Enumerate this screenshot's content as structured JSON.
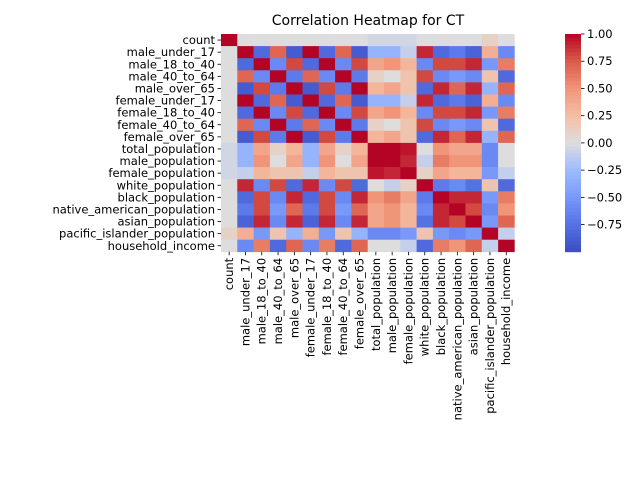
{
  "chart_data": {
    "type": "heatmap",
    "title": "Correlation Heatmap for CT",
    "xlabel": "",
    "ylabel": "",
    "colormap": "coolwarm",
    "vmin": -1.0,
    "vmax": 1.0,
    "colorbar_ticks": [
      "1.00",
      "0.75",
      "0.50",
      "0.25",
      "0.00",
      "−0.25",
      "−0.50",
      "−0.75"
    ],
    "colorbar_tick_values": [
      1.0,
      0.75,
      0.5,
      0.25,
      0.0,
      -0.25,
      -0.5,
      -0.75
    ],
    "categories": [
      "count",
      "male_under_17",
      "male_18_to_40",
      "male_40_to_64",
      "male_over_65",
      "female_under_17",
      "female_18_to_40",
      "female_40_to_64",
      "female_over_65",
      "total_population",
      "male_population",
      "female_population",
      "white_population",
      "black_population",
      "native_american_population",
      "asian_population",
      "pacific_islander_population",
      "household_income"
    ],
    "matrix": [
      [
        1.0,
        0.0,
        0.0,
        0.0,
        0.0,
        0.0,
        0.0,
        0.0,
        0.0,
        -0.05,
        -0.05,
        -0.05,
        0.0,
        0.0,
        0.0,
        0.0,
        0.1,
        0.0
      ],
      [
        0.0,
        1.0,
        -0.8,
        0.7,
        -0.9,
        1.0,
        -0.8,
        0.7,
        -0.9,
        -0.3,
        -0.3,
        -0.1,
        0.9,
        -0.8,
        -0.7,
        -0.85,
        0.35,
        -0.6
      ],
      [
        0.0,
        -0.8,
        1.0,
        -0.6,
        0.8,
        -0.8,
        1.0,
        -0.6,
        0.8,
        0.4,
        0.5,
        0.3,
        -0.6,
        0.8,
        0.8,
        0.9,
        -0.5,
        0.6
      ],
      [
        0.0,
        0.7,
        -0.6,
        1.0,
        -0.7,
        0.7,
        -0.6,
        1.0,
        -0.7,
        0.1,
        0.0,
        0.2,
        0.8,
        -0.6,
        -0.5,
        -0.6,
        0.2,
        -0.8
      ],
      [
        0.0,
        -0.9,
        0.8,
        -0.7,
        1.0,
        -0.9,
        0.8,
        -0.7,
        1.0,
        0.3,
        0.4,
        0.2,
        -0.8,
        0.9,
        0.7,
        0.9,
        -0.3,
        0.7
      ],
      [
        0.0,
        1.0,
        -0.8,
        0.7,
        -0.9,
        1.0,
        -0.8,
        0.7,
        -0.9,
        -0.3,
        -0.3,
        -0.1,
        0.9,
        -0.8,
        -0.7,
        -0.85,
        0.35,
        -0.6
      ],
      [
        0.0,
        -0.8,
        1.0,
        -0.6,
        0.8,
        -0.8,
        1.0,
        -0.6,
        0.8,
        0.4,
        0.5,
        0.3,
        -0.6,
        0.8,
        0.8,
        0.9,
        -0.5,
        0.6
      ],
      [
        0.0,
        0.7,
        -0.6,
        1.0,
        -0.7,
        0.7,
        -0.6,
        1.0,
        -0.7,
        0.1,
        0.0,
        0.2,
        0.8,
        -0.6,
        -0.5,
        -0.6,
        0.2,
        -0.8
      ],
      [
        0.0,
        -0.9,
        0.8,
        -0.7,
        1.0,
        -0.9,
        0.8,
        -0.7,
        1.0,
        0.3,
        0.4,
        0.2,
        -0.8,
        0.9,
        0.7,
        0.9,
        -0.3,
        0.7
      ],
      [
        -0.05,
        -0.3,
        0.4,
        0.1,
        0.3,
        -0.3,
        0.4,
        0.1,
        0.3,
        1.0,
        1.0,
        0.95,
        0.0,
        0.5,
        0.4,
        0.4,
        -0.6,
        0.0
      ],
      [
        -0.05,
        -0.3,
        0.5,
        0.0,
        0.4,
        -0.3,
        0.5,
        0.0,
        0.4,
        1.0,
        1.0,
        0.9,
        -0.1,
        0.6,
        0.5,
        0.5,
        -0.6,
        0.0
      ],
      [
        -0.05,
        -0.1,
        0.3,
        0.2,
        0.2,
        -0.1,
        0.3,
        0.2,
        0.2,
        0.95,
        0.9,
        1.0,
        0.1,
        0.4,
        0.3,
        0.3,
        -0.5,
        -0.1
      ],
      [
        0.0,
        0.9,
        -0.6,
        0.8,
        -0.8,
        0.9,
        -0.6,
        0.8,
        -0.8,
        0.0,
        -0.1,
        0.1,
        1.0,
        -0.7,
        -0.6,
        -0.75,
        0.2,
        -0.8
      ],
      [
        0.0,
        -0.8,
        0.8,
        -0.6,
        0.9,
        -0.8,
        0.8,
        -0.6,
        0.9,
        0.5,
        0.6,
        0.4,
        -0.7,
        1.0,
        0.9,
        0.9,
        -0.5,
        0.6
      ],
      [
        0.0,
        -0.7,
        0.8,
        -0.5,
        0.7,
        -0.7,
        0.8,
        -0.5,
        0.7,
        0.4,
        0.5,
        0.3,
        -0.6,
        0.9,
        1.0,
        0.8,
        -0.6,
        0.5
      ],
      [
        0.0,
        -0.85,
        0.9,
        -0.6,
        0.9,
        -0.85,
        0.9,
        -0.6,
        0.9,
        0.4,
        0.5,
        0.3,
        -0.75,
        0.9,
        0.8,
        1.0,
        -0.5,
        0.7
      ],
      [
        0.1,
        0.35,
        -0.5,
        0.2,
        -0.3,
        0.35,
        -0.5,
        0.2,
        -0.3,
        -0.6,
        -0.6,
        -0.5,
        0.2,
        -0.5,
        -0.6,
        -0.5,
        1.0,
        -0.1
      ],
      [
        0.0,
        -0.6,
        0.6,
        -0.8,
        0.7,
        -0.6,
        0.6,
        -0.8,
        0.7,
        0.0,
        0.0,
        -0.1,
        -0.8,
        0.6,
        0.5,
        0.7,
        -0.1,
        1.0
      ]
    ]
  }
}
